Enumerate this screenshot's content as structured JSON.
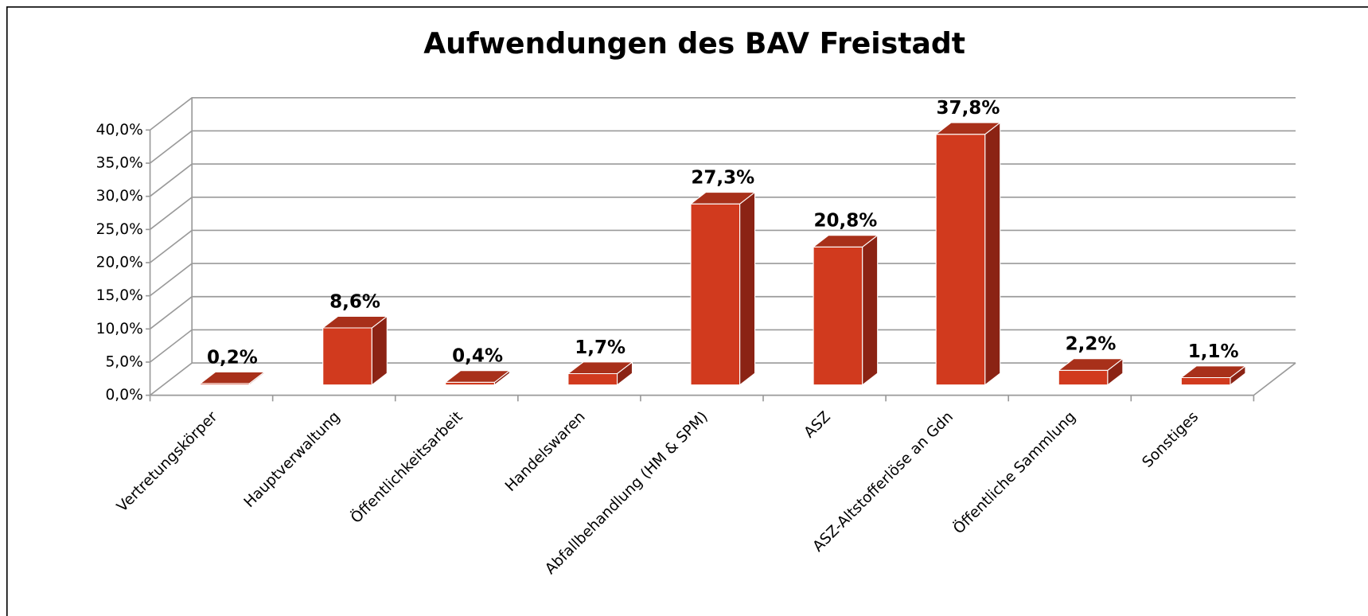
{
  "chart_data": {
    "type": "bar3d",
    "title": "Aufwendungen des BAV Freistadt",
    "categories": [
      "Vertretungskörper",
      "Hauptverwaltung",
      "Öffentlichkeitsarbeit",
      "Handelswaren",
      "Abfallbehandlung (HM & SPM)",
      "ASZ",
      "ASZ-Altstofferlöse an Gdn",
      "Öffentliche Sammlung",
      "Sonstiges"
    ],
    "values": [
      0.2,
      8.6,
      0.4,
      1.7,
      27.3,
      20.8,
      37.8,
      2.2,
      1.1
    ],
    "value_labels": [
      "0,2%",
      "8,6%",
      "0,4%",
      "1,7%",
      "27,3%",
      "20,8%",
      "37,8%",
      "2,2%",
      "1,1%"
    ],
    "color": "#d13a1e",
    "ylim": [
      0,
      40
    ],
    "yticks": [
      {
        "value": 0,
        "label": "0,0%"
      },
      {
        "value": 5,
        "label": "5,0%"
      },
      {
        "value": 10,
        "label": "10,0%"
      },
      {
        "value": 15,
        "label": "15,0%"
      },
      {
        "value": 20,
        "label": "20,0%"
      },
      {
        "value": 25,
        "label": "25,0%"
      },
      {
        "value": 30,
        "label": "30,0%"
      },
      {
        "value": 35,
        "label": "35,0%"
      },
      {
        "value": 40,
        "label": "40,0%"
      }
    ],
    "grid": true
  }
}
